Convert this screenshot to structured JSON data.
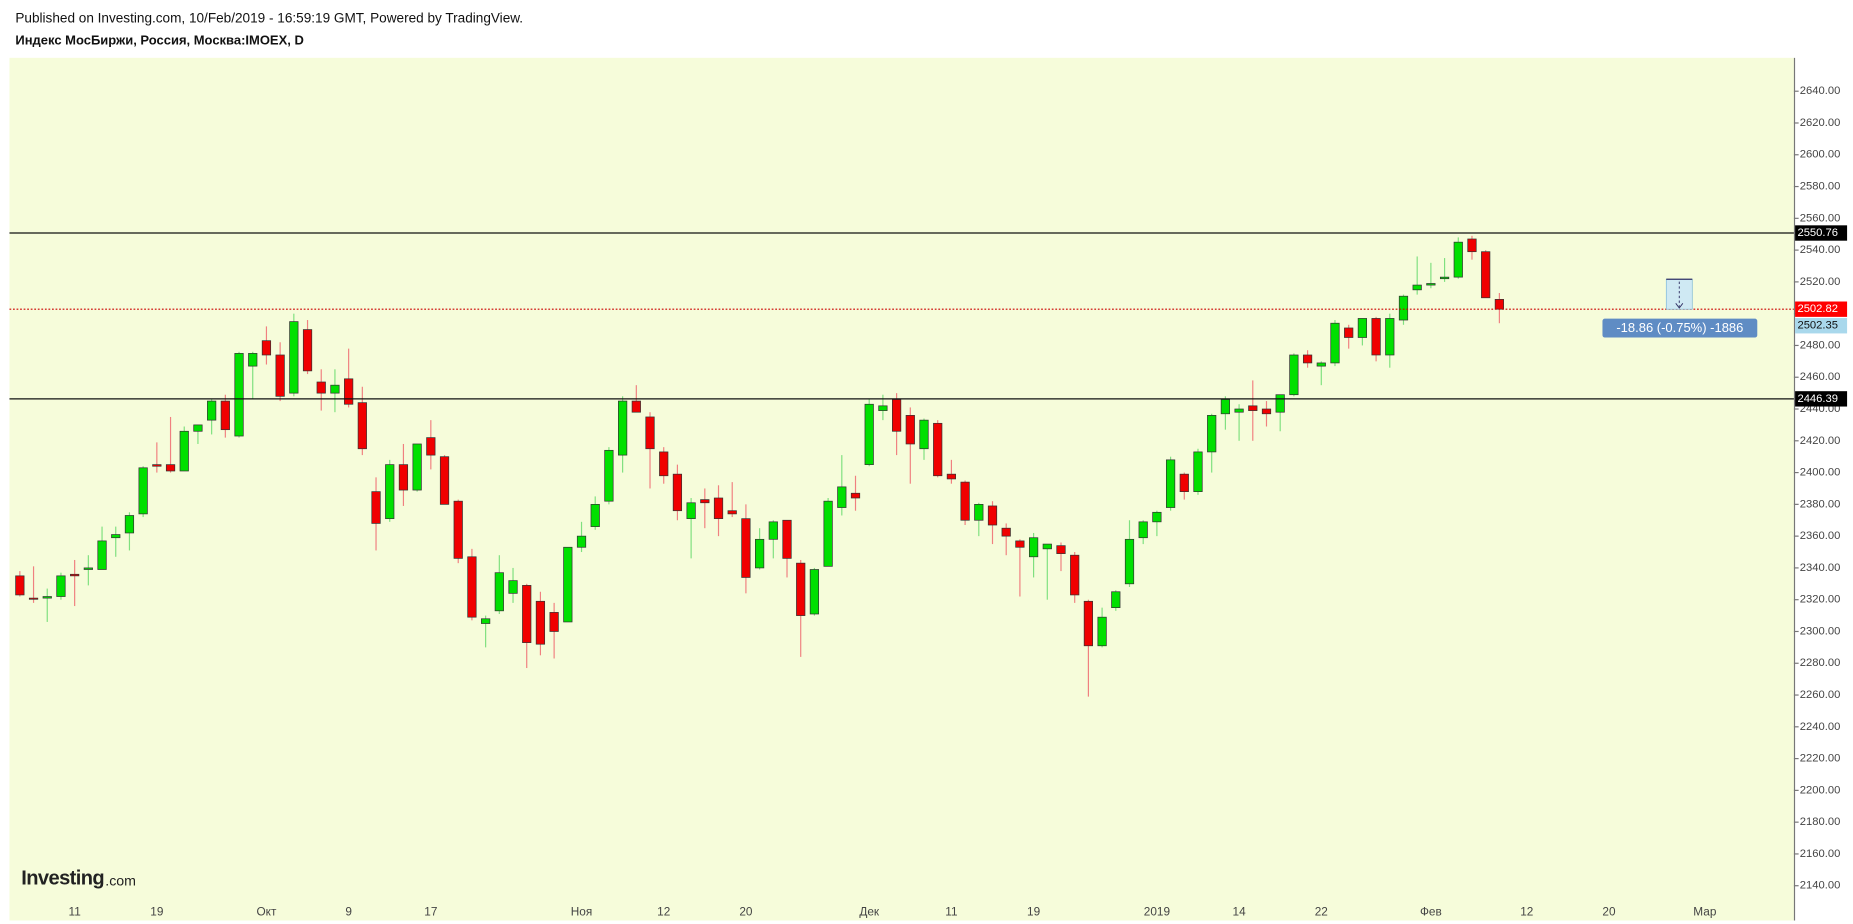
{
  "header": {
    "published": "Published on Investing.com, 10/Feb/2019 - 16:59:19 GMT, Powered by TradingView.",
    "symbol": "Индекс МосБиржи, Россия, Москва:IMOEX, D"
  },
  "chart_data": {
    "type": "candlestick",
    "categories": [
      null,
      null,
      null,
      null,
      "11",
      null,
      null,
      null,
      null,
      null,
      "19",
      null,
      null,
      null,
      null,
      null,
      null,
      null,
      "Окт",
      null,
      null,
      null,
      null,
      null,
      "9",
      null,
      null,
      null,
      null,
      null,
      "17",
      null,
      null,
      null,
      null,
      null,
      null,
      null,
      null,
      null,
      null,
      "Ноя",
      null,
      null,
      null,
      null,
      null,
      "12",
      null,
      null,
      null,
      null,
      null,
      "20",
      null,
      null,
      null,
      null,
      null,
      null,
      null,
      null,
      "Дек",
      null,
      null,
      null,
      null,
      null,
      "11",
      null,
      null,
      null,
      null,
      null,
      "19",
      null,
      null,
      null,
      null,
      null,
      null,
      null,
      null,
      "2019",
      null,
      null,
      null,
      null,
      null,
      "14",
      null,
      null,
      null,
      null,
      null,
      "22",
      null,
      null,
      null,
      null,
      null,
      null,
      null,
      "Фев",
      null,
      null,
      null,
      null,
      null,
      null,
      "12",
      null,
      null,
      null,
      null,
      null,
      "20",
      null,
      null,
      null,
      null,
      null,
      null,
      "Мар",
      null,
      null,
      null,
      null,
      null
    ],
    "open": [
      2335,
      2321,
      2321,
      2322,
      2336,
      2339,
      2339,
      2359,
      2362,
      2374,
      2405,
      2405,
      2401,
      2426,
      2433,
      2445,
      2423,
      2467,
      2483,
      2474,
      2450,
      2490,
      2457,
      2450,
      2459,
      2444,
      2388,
      2371,
      2405,
      2389,
      2422,
      2410,
      2382,
      2347,
      2305,
      2313,
      2324,
      2329,
      2319,
      2312,
      2306,
      2353,
      2366,
      2382,
      2411,
      2445,
      2435,
      2413,
      2399,
      2371,
      2383,
      2384,
      2376,
      2371,
      2340,
      2358,
      2370,
      2343,
      2311,
      2341,
      2378,
      2387,
      2405,
      2439,
      2446,
      2436,
      2415,
      2431,
      2399,
      2394,
      2370,
      2379,
      2365,
      2357,
      2347,
      2352,
      2354,
      2348,
      2319,
      2291,
      2315,
      2330,
      2359,
      2369,
      2378,
      2399,
      2388,
      2413,
      2437,
      2438,
      2442,
      2440,
      2438,
      2449,
      2474,
      2467,
      2469,
      2491,
      2485,
      2497,
      2474,
      2496,
      2515,
      2518,
      2522,
      2523,
      2547,
      2539,
      2509,
      null,
      null,
      null,
      null,
      null,
      null,
      null,
      null,
      null,
      null,
      null,
      null,
      null,
      null,
      null,
      null,
      null,
      null,
      null,
      null
    ],
    "high": [
      2338,
      2341,
      2327,
      2337,
      2345,
      2348,
      2366,
      2366,
      2375,
      2404,
      2419,
      2435,
      2429,
      2430,
      2446,
      2449,
      2476,
      2476,
      2492,
      2482,
      2500,
      2496,
      2465,
      2465,
      2478,
      2454,
      2397,
      2408,
      2418,
      2418,
      2433,
      2411,
      2383,
      2352,
      2310,
      2348,
      2340,
      2330,
      2325,
      2318,
      2353,
      2369,
      2385,
      2416,
      2448,
      2455,
      2438,
      2416,
      2405,
      2384,
      2390,
      2392,
      2394,
      2380,
      2365,
      2370,
      2370,
      2345,
      2340,
      2384,
      2411,
      2398,
      2446,
      2449,
      2450,
      2441,
      2434,
      2433,
      2408,
      2395,
      2381,
      2382,
      2368,
      2358,
      2362,
      2355,
      2356,
      2350,
      2320,
      2315,
      2326,
      2370,
      2370,
      2376,
      2410,
      2400,
      2415,
      2437,
      2448,
      2443,
      2458,
      2445,
      2449,
      2475,
      2477,
      2470,
      2496,
      2493,
      2497,
      2498,
      2500,
      2512,
      2536,
      2532,
      2535,
      2548,
      2549,
      2540,
      2513,
      null,
      null,
      null,
      null,
      null,
      null,
      null,
      null,
      null,
      null,
      null,
      null,
      null,
      null,
      null,
      null,
      null,
      null,
      null,
      null
    ],
    "low": [
      2322,
      2318,
      2306,
      2320,
      2316,
      2329,
      2339,
      2347,
      2351,
      2372,
      2400,
      2400,
      2401,
      2418,
      2424,
      2422,
      2422,
      2446,
      2468,
      2445,
      2448,
      2462,
      2439,
      2438,
      2441,
      2411,
      2351,
      2369,
      2379,
      2388,
      2402,
      2380,
      2343,
      2307,
      2290,
      2311,
      2318,
      2277,
      2285,
      2283,
      2306,
      2350,
      2364,
      2380,
      2400,
      2438,
      2390,
      2393,
      2370,
      2346,
      2365,
      2360,
      2372,
      2324,
      2339,
      2346,
      2334,
      2284,
      2310,
      2341,
      2373,
      2376,
      2404,
      2433,
      2411,
      2393,
      2408,
      2397,
      2393,
      2367,
      2360,
      2355,
      2348,
      2322,
      2334,
      2320,
      2338,
      2318,
      2259,
      2290,
      2313,
      2328,
      2355,
      2360,
      2376,
      2383,
      2386,
      2400,
      2427,
      2420,
      2420,
      2429,
      2426,
      2448,
      2466,
      2455,
      2467,
      2478,
      2480,
      2470,
      2466,
      2493,
      2512,
      2516,
      2520,
      2522,
      2534,
      2510,
      2494,
      null,
      null,
      null,
      null,
      null,
      null,
      null,
      null,
      null,
      null,
      null,
      null,
      null,
      null,
      null,
      null,
      null,
      null,
      null,
      null
    ],
    "close": [
      2323,
      2320.5,
      2322,
      2335,
      2335,
      2340,
      2357,
      2361,
      2373,
      2403,
      2404,
      2401,
      2426,
      2430,
      2445,
      2427,
      2475,
      2475,
      2474,
      2448,
      2495,
      2464,
      2450,
      2455,
      2443,
      2415,
      2368,
      2405,
      2389,
      2418,
      2411,
      2380,
      2346,
      2309,
      2308,
      2337,
      2332,
      2293,
      2292,
      2300,
      2353,
      2360,
      2380,
      2414,
      2445,
      2438,
      2415,
      2398,
      2376,
      2381,
      2381,
      2371,
      2374,
      2334,
      2358,
      2369,
      2346,
      2310,
      2339,
      2382,
      2391,
      2384,
      2443,
      2442,
      2426,
      2418,
      2433,
      2398,
      2396,
      2370,
      2380,
      2367,
      2360,
      2353,
      2359,
      2355,
      2349,
      2323,
      2291,
      2309,
      2325,
      2358,
      2369,
      2375,
      2408,
      2388,
      2413,
      2436,
      2446,
      2440,
      2439,
      2437,
      2449,
      2474,
      2469,
      2469,
      2494,
      2485,
      2497,
      2474,
      2497,
      2511,
      2518,
      2519,
      2523,
      2545,
      2539,
      2510,
      2502.82,
      null,
      null,
      null,
      null,
      null,
      null,
      null,
      null,
      null,
      null,
      null,
      null,
      null,
      null,
      null,
      null,
      null,
      null,
      null,
      null
    ],
    "up_color": "#00e000",
    "down_color": "#f00000",
    "ylim": [
      2130,
      2661
    ],
    "yticks": [
      {
        "value": 2140,
        "label": "2140.00"
      },
      {
        "value": 2160,
        "label": "2160.00"
      },
      {
        "value": 2180,
        "label": "2180.00"
      },
      {
        "value": 2200,
        "label": "2200.00"
      },
      {
        "value": 2220,
        "label": "2220.00"
      },
      {
        "value": 2240,
        "label": "2240.00"
      },
      {
        "value": 2260,
        "label": "2260.00"
      },
      {
        "value": 2280,
        "label": "2280.00"
      },
      {
        "value": 2300,
        "label": "2300.00"
      },
      {
        "value": 2320,
        "label": "2320.00"
      },
      {
        "value": 2340,
        "label": "2340.00"
      },
      {
        "value": 2360,
        "label": "2360.00"
      },
      {
        "value": 2380,
        "label": "2380.00"
      },
      {
        "value": 2400,
        "label": "2400.00"
      },
      {
        "value": 2420,
        "label": "2420.00"
      },
      {
        "value": 2440,
        "label": "2440.00"
      },
      {
        "value": 2460,
        "label": "2460.00"
      },
      {
        "value": 2480,
        "label": "2480.00"
      },
      {
        "value": 2500,
        "label": "2500.00"
      },
      {
        "value": 2520,
        "label": "2520.00"
      },
      {
        "value": 2540,
        "label": "2540.00"
      },
      {
        "value": 2560,
        "label": "2560.00"
      },
      {
        "value": 2580,
        "label": "2580.00"
      },
      {
        "value": 2600,
        "label": "2600.00"
      },
      {
        "value": 2620,
        "label": "2620.00"
      },
      {
        "value": 2640,
        "label": "2640.00"
      }
    ],
    "hlines": [
      2550.76,
      2446.39
    ],
    "last_price": 2502.82,
    "bid_price": 2502.35,
    "measure": {
      "from": 2521.68,
      "to": 2502.82,
      "label": "-18.86 (-0.75%) -1886"
    }
  },
  "watermark": {
    "brand": "Investing",
    "suffix": ".com"
  }
}
